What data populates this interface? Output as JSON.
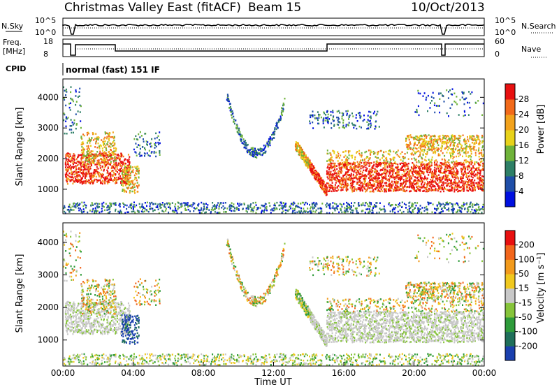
{
  "header": {
    "title": "Christmas Valley East (fitACF)",
    "beam": "Beam 15",
    "date": "10/Oct/2013"
  },
  "aux_panels": {
    "nsky_label": "N.Sky",
    "nsky_ticks": [
      "10^5",
      "10^0"
    ],
    "nsearch_label": "N.Search",
    "nsearch_ticks": [
      "10^5",
      "10^0"
    ],
    "freq_label": "Freq.",
    "freq_unit": "[MHz]",
    "freq_ticks": [
      "18",
      "8"
    ],
    "nave_label": "Nave",
    "nave_ticks": [
      "60",
      "0"
    ],
    "cpid_label": "CPID",
    "cpid_text": "normal (fast) 151 IF"
  },
  "chart_data": [
    {
      "type": "heatmap",
      "name": "power",
      "ylabel": "Slant Range [km]",
      "xlabel": "",
      "ylim": [
        200,
        4600
      ],
      "yticks": [
        "1000",
        "2000",
        "3000",
        "4000"
      ],
      "colorbar": {
        "label": "Power [dB]",
        "ticks": [
          "4",
          "8",
          "12",
          "16",
          "20",
          "24",
          "28"
        ],
        "colors": [
          "#0010e0",
          "#1f4ea8",
          "#2e7f66",
          "#6fb33a",
          "#e8d21a",
          "#f2a21c",
          "#f26a1a",
          "#e81010"
        ]
      }
    },
    {
      "type": "heatmap",
      "name": "velocity",
      "ylabel": "Slant Range [km]",
      "xlabel": "Time UT",
      "ylim": [
        200,
        4600
      ],
      "yticks": [
        "1000",
        "2000",
        "3000",
        "4000"
      ],
      "xticks": [
        "00:00",
        "04:00",
        "08:00",
        "12:00",
        "16:00",
        "20:00",
        "00:00"
      ],
      "colorbar": {
        "label": "Velocity [m s⁻¹]",
        "ticks": [
          "200",
          "100",
          "50",
          "15",
          "-15",
          "-50",
          "-100",
          "-200"
        ],
        "colors": [
          "#1a3fae",
          "#1f6f5a",
          "#2e9b3a",
          "#86c43a",
          "#c8c8c8",
          "#f0c81e",
          "#f29a1c",
          "#f2661c",
          "#e81010"
        ]
      }
    }
  ]
}
